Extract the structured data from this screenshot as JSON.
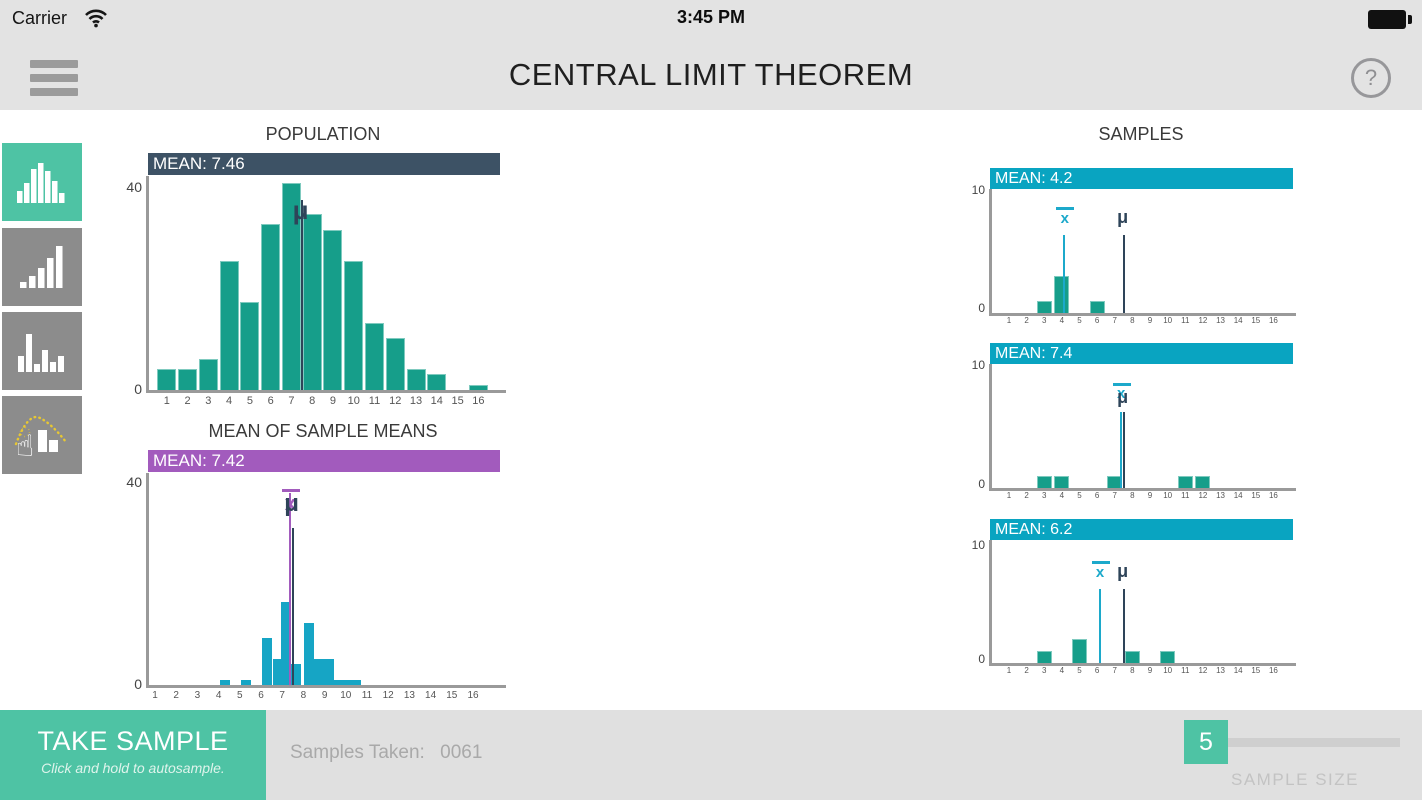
{
  "status_bar": {
    "carrier": "Carrier",
    "time": "3:45 PM"
  },
  "app_header": {
    "title": "CENTRAL LIMIT THEOREM",
    "help_label": "?"
  },
  "sidebar": {
    "buttons": [
      {
        "id": "distribution-normal",
        "icon": "histogram-bell-icon",
        "active": true
      },
      {
        "id": "distribution-skewed",
        "icon": "histogram-ascending-icon",
        "active": false
      },
      {
        "id": "distribution-random",
        "icon": "histogram-random-icon",
        "active": false
      },
      {
        "id": "distribution-custom",
        "icon": "draw-custom-icon",
        "active": false
      }
    ]
  },
  "samples_section_title": "SAMPLES",
  "colors": {
    "mint": "#4ec3a4",
    "teal_bar": "#169e8a",
    "cyan_bar": "#16a5c5",
    "cyan_header": "#09a4c1",
    "purple": "#a25bbd",
    "slate_header": "#3d5265",
    "navy_marker": "#2e4459",
    "cyan_marker": "#1ca9cb"
  },
  "chart_data": [
    {
      "id": "population",
      "type": "bar",
      "title": "POPULATION",
      "mean_label": "MEAN: 7.46",
      "mean": 7.46,
      "categories": [
        1,
        2,
        3,
        4,
        5,
        6,
        7,
        8,
        9,
        10,
        11,
        12,
        13,
        14,
        15,
        16
      ],
      "values": [
        4,
        4,
        6,
        25,
        17,
        32,
        40,
        34,
        31,
        25,
        13,
        10,
        4,
        3,
        0,
        1
      ],
      "ylim": [
        0,
        40
      ],
      "yticks": [
        "0",
        "40"
      ],
      "markers": [
        {
          "type": "mu",
          "symbol": "μ",
          "value": 7.46,
          "color": "#2e4459"
        }
      ],
      "bar_color": "#169e8a",
      "header_color": "#3d5265"
    },
    {
      "id": "sample_means",
      "type": "bar",
      "title": "MEAN OF SAMPLE MEANS",
      "mean_label": "MEAN: 7.42",
      "mean": 7.42,
      "categories": [
        1,
        2,
        3,
        4,
        5,
        6,
        7,
        8,
        9,
        10,
        11,
        12,
        13,
        14,
        15,
        16
      ],
      "x": [
        4.3,
        5.3,
        6.3,
        6.8,
        7.2,
        7.65,
        8.25,
        8.75,
        9.2,
        9.7,
        10.1,
        10.5
      ],
      "counts": [
        1,
        1,
        9,
        5,
        16,
        4,
        12,
        5,
        5,
        1,
        1,
        1
      ],
      "ylim": [
        0,
        40
      ],
      "yticks": [
        "0",
        "40"
      ],
      "markers": [
        {
          "type": "xbar",
          "symbol": "x̄",
          "value": 7.42,
          "color": "#a25bbd"
        },
        {
          "type": "mu",
          "symbol": "μ",
          "value": 7.46,
          "color": "#2e4459"
        }
      ],
      "bar_color": "#16a5c5",
      "header_color": "#a25bbd"
    },
    {
      "id": "sample_1",
      "type": "bar",
      "mean_label": "MEAN: 4.2",
      "mean": 4.2,
      "categories": [
        1,
        2,
        3,
        4,
        5,
        6,
        7,
        8,
        9,
        10,
        11,
        12,
        13,
        14,
        15,
        16
      ],
      "values": [
        0,
        0,
        1,
        3,
        0,
        1,
        0,
        0,
        0,
        0,
        0,
        0,
        0,
        0,
        0,
        0
      ],
      "ylim": [
        0,
        10
      ],
      "yticks": [
        "0",
        "10"
      ],
      "markers": [
        {
          "type": "xbar",
          "symbol": "x̄",
          "value": 4.2,
          "color": "#1ca9cb"
        },
        {
          "type": "mu",
          "symbol": "μ",
          "value": 7.46,
          "color": "#2e4459"
        }
      ],
      "bar_color": "#169e8a",
      "header_color": "#09a4c1"
    },
    {
      "id": "sample_2",
      "type": "bar",
      "mean_label": "MEAN: 7.4",
      "mean": 7.4,
      "categories": [
        1,
        2,
        3,
        4,
        5,
        6,
        7,
        8,
        9,
        10,
        11,
        12,
        13,
        14,
        15,
        16
      ],
      "values": [
        0,
        0,
        1,
        1,
        0,
        0,
        1,
        0,
        0,
        0,
        1,
        1,
        0,
        0,
        0,
        0
      ],
      "ylim": [
        0,
        10
      ],
      "yticks": [
        "0",
        "10"
      ],
      "markers": [
        {
          "type": "xbar",
          "symbol": "x̄",
          "value": 7.4,
          "color": "#1ca9cb"
        },
        {
          "type": "mu",
          "symbol": "μ",
          "value": 7.46,
          "color": "#2e4459"
        }
      ],
      "bar_color": "#169e8a",
      "header_color": "#09a4c1"
    },
    {
      "id": "sample_3",
      "type": "bar",
      "mean_label": "MEAN: 6.2",
      "mean": 6.2,
      "categories": [
        1,
        2,
        3,
        4,
        5,
        6,
        7,
        8,
        9,
        10,
        11,
        12,
        13,
        14,
        15,
        16
      ],
      "values": [
        0,
        0,
        1,
        0,
        2,
        0,
        0,
        1,
        0,
        1,
        0,
        0,
        0,
        0,
        0,
        0
      ],
      "ylim": [
        0,
        10
      ],
      "yticks": [
        "0",
        "10"
      ],
      "markers": [
        {
          "type": "xbar",
          "symbol": "x̄",
          "value": 6.2,
          "color": "#1ca9cb"
        },
        {
          "type": "mu",
          "symbol": "μ",
          "value": 7.46,
          "color": "#2e4459"
        }
      ],
      "bar_color": "#169e8a",
      "header_color": "#09a4c1"
    }
  ],
  "footer": {
    "take_sample_label": "TAKE SAMPLE",
    "take_sample_hint": "Click and hold to autosample.",
    "samples_taken_label": "Samples Taken:",
    "samples_taken_value": "0061",
    "slider_value": "5",
    "slider_label": "SAMPLE SIZE"
  }
}
